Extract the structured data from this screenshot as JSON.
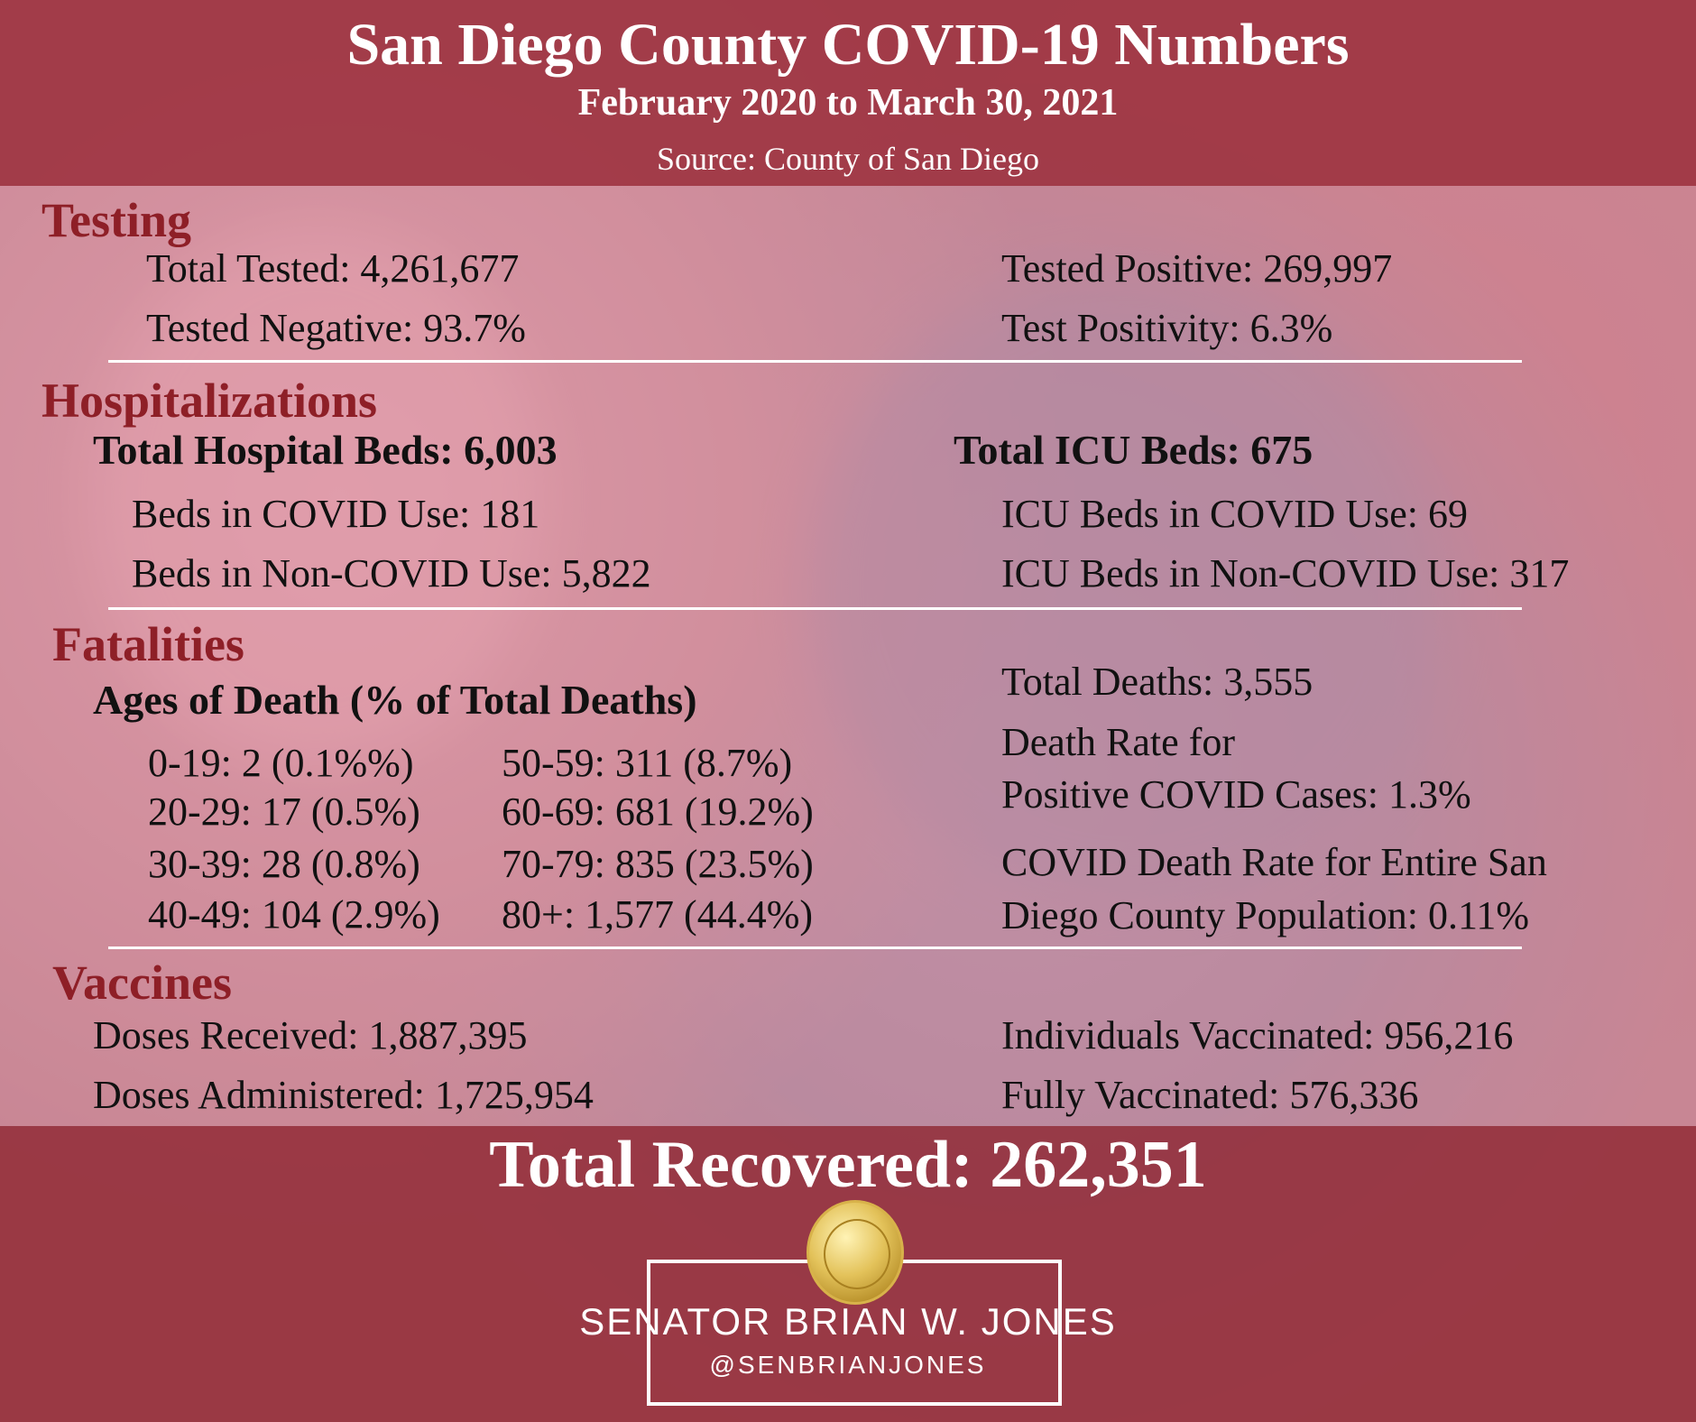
{
  "header": {
    "title": "San Diego County COVID-19 Numbers",
    "subtitle": "February 2020 to March 30, 2021",
    "source": "Source: County of San Diego"
  },
  "testing": {
    "heading": "Testing",
    "total_tested": "Total Tested: 4,261,677",
    "tested_negative": "Tested Negative: 93.7%",
    "tested_positive": "Tested Positive: 269,997",
    "test_positivity": "Test Positivity: 6.3%"
  },
  "hospitalizations": {
    "heading": "Hospitalizations",
    "total_beds": "Total Hospital Beds: 6,003",
    "beds_covid": "Beds in COVID Use: 181",
    "beds_noncovid": "Beds in Non-COVID Use: 5,822",
    "total_icu": "Total ICU Beds: 675",
    "icu_covid": "ICU Beds in COVID Use: 69",
    "icu_noncovid": "ICU Beds in Non-COVID Use: 317"
  },
  "fatalities": {
    "heading": "Fatalities",
    "ages_heading": "Ages of Death (% of Total Deaths)",
    "ages": [
      "0-19: 2 (0.1%%)",
      "20-29: 17 (0.5%)",
      "30-39: 28 (0.8%)",
      "40-49: 104 (2.9%)",
      "50-59: 311 (8.7%)",
      "60-69: 681 (19.2%)",
      "70-79: 835 (23.5%)",
      "80+: 1,577 (44.4%)"
    ],
    "total_deaths": "Total Deaths: 3,555",
    "death_rate_line1": "Death Rate for",
    "death_rate_line2": "Positive COVID Cases: 1.3%",
    "pop_rate_line1": "COVID Death Rate for Entire San",
    "pop_rate_line2": "Diego County Population: 0.11%"
  },
  "vaccines": {
    "heading": "Vaccines",
    "doses_received": "Doses Received: 1,887,395",
    "doses_administered": "Doses Administered: 1,725,954",
    "individuals": "Individuals Vaccinated: 956,216",
    "fully": "Fully Vaccinated: 576,336"
  },
  "total_recovered": "Total Recovered: 262,351",
  "footer": {
    "seal_text": "Seal of the Senate of the State of California",
    "name": "SENATOR BRIAN W. JONES",
    "handle": "@SENBRIANJONES"
  },
  "colors": {
    "header_band": "#a03744",
    "heading": "#8e1f27",
    "seal_gold": "#e3c25a"
  }
}
